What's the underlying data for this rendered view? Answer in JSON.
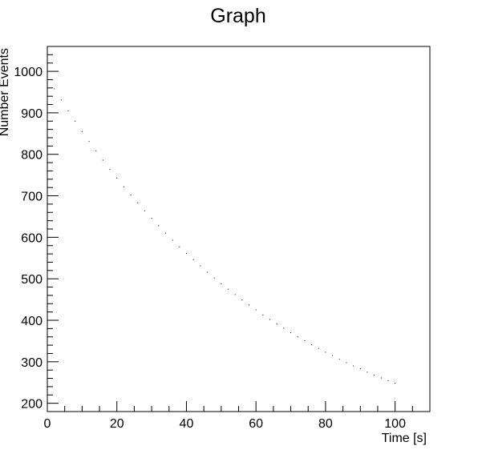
{
  "chart_data": {
    "type": "scatter",
    "title": "Graph",
    "xlabel": "Time [s]",
    "ylabel": "Number Events",
    "xlim": [
      0,
      110
    ],
    "ylim": [
      180,
      1060
    ],
    "x_ticks": [
      0,
      20,
      40,
      60,
      80,
      100
    ],
    "x_tick_labels": [
      "0",
      "20",
      "40",
      "60",
      "80",
      "100"
    ],
    "y_ticks": [
      200,
      300,
      400,
      500,
      600,
      700,
      800,
      900,
      1000
    ],
    "y_tick_labels": [
      "200",
      "300",
      "400",
      "500",
      "600",
      "700",
      "800",
      "900",
      "1000"
    ],
    "grid": false,
    "series": [
      {
        "name": "Graph",
        "x": [
          0,
          2,
          4,
          6,
          8,
          10,
          12,
          14,
          16,
          18,
          20,
          22,
          24,
          26,
          28,
          30,
          32,
          34,
          36,
          38,
          40,
          42,
          44,
          46,
          48,
          50,
          52,
          54,
          56,
          58,
          60,
          62,
          64,
          66,
          68,
          70,
          72,
          74,
          76,
          78,
          80,
          82,
          84,
          86,
          88,
          90,
          92,
          94,
          96,
          98,
          100
        ],
        "y": [
          986,
          958,
          931,
          905,
          880,
          855,
          831,
          808,
          786,
          764,
          743,
          722,
          702,
          683,
          664,
          646,
          628,
          610,
          593,
          577,
          561,
          546,
          531,
          516,
          502,
          488,
          475,
          462,
          449,
          437,
          425,
          413,
          402,
          391,
          381,
          370,
          360,
          351,
          341,
          332,
          323,
          315,
          306,
          298,
          290,
          283,
          275,
          268,
          261,
          254,
          248
        ],
        "color": "#000000"
      }
    ]
  }
}
